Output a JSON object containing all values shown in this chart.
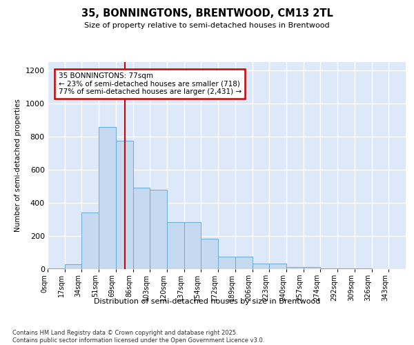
{
  "title1": "35, BONNINGTONS, BRENTWOOD, CM13 2TL",
  "title2": "Size of property relative to semi-detached houses in Brentwood",
  "xlabel": "Distribution of semi-detached houses by size in Brentwood",
  "ylabel": "Number of semi-detached properties",
  "footnote": "Contains HM Land Registry data © Crown copyright and database right 2025.\nContains public sector information licensed under the Open Government Licence v3.0.",
  "bar_labels": [
    "0sqm",
    "17sqm",
    "34sqm",
    "51sqm",
    "69sqm",
    "86sqm",
    "103sqm",
    "120sqm",
    "137sqm",
    "154sqm",
    "172sqm",
    "189sqm",
    "206sqm",
    "223sqm",
    "240sqm",
    "257sqm",
    "274sqm",
    "292sqm",
    "309sqm",
    "326sqm",
    "343sqm"
  ],
  "bar_values": [
    5,
    30,
    340,
    860,
    775,
    490,
    480,
    285,
    285,
    185,
    75,
    75,
    35,
    35,
    12,
    12,
    5,
    5,
    5,
    0,
    0
  ],
  "bar_color": "#c5d9f0",
  "bar_edge_color": "#6aaad4",
  "property_line_x": 77,
  "property_line_color": "#cc0000",
  "annotation_title": "35 BONNINGTONS: 77sqm",
  "annotation_line1": "← 23% of semi-detached houses are smaller (718)",
  "annotation_line2": "77% of semi-detached houses are larger (2,431) →",
  "annotation_box_color": "#ffffff",
  "annotation_box_edge": "#cc0000",
  "ylim": [
    0,
    1250
  ],
  "yticks": [
    0,
    200,
    400,
    600,
    800,
    1000,
    1200
  ],
  "bg_color": "#dde8f8",
  "grid_color": "#ffffff",
  "bin_width": 17
}
